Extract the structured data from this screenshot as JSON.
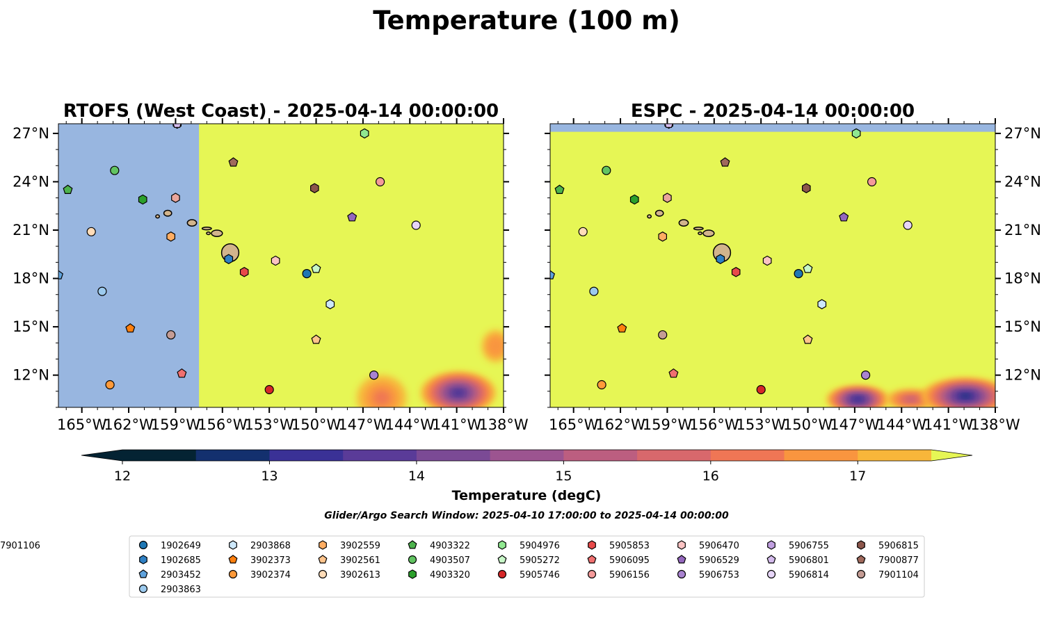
{
  "figure": {
    "title": "Temperature (100 m)",
    "search_window": "Glider/Argo Search Window: 2025-04-10 17:00:00 to 2025-04-14 00:00:00"
  },
  "colors": {
    "land": "#d2b48c",
    "no_data": "#98b6e0",
    "over": "#e6f655",
    "under": "#042333"
  },
  "colorbar": {
    "label": "Temperature (degC)",
    "min": 12,
    "max": 17.5,
    "step": 0.5,
    "ticks": [
      12,
      13,
      14,
      15,
      16,
      17
    ],
    "tick_labels": [
      "12",
      "13",
      "14",
      "15",
      "16",
      "17"
    ],
    "level_colors": [
      "#042333",
      "#13306e",
      "#3a3196",
      "#5a3b98",
      "#7b4a95",
      "#9c5490",
      "#bc5e80",
      "#d8686c",
      "#ef7655",
      "#f9953f",
      "#f8b63a"
    ],
    "extend": "both"
  },
  "map": {
    "lon_range": [
      -166.5,
      -138
    ],
    "lat_range": [
      10,
      27.6
    ],
    "x_ticks": [
      -165,
      -162,
      -159,
      -156,
      -153,
      -150,
      -147,
      -144,
      -141,
      -138
    ],
    "x_tick_labels": [
      "165°W",
      "162°W",
      "159°W",
      "156°W",
      "153°W",
      "150°W",
      "147°W",
      "144°W",
      "141°W",
      "138°W"
    ],
    "y_ticks": [
      12,
      15,
      18,
      21,
      24,
      27
    ],
    "y_tick_labels": [
      "12°N",
      "15°N",
      "18°N",
      "21°N",
      "24°N",
      "27°N"
    ]
  },
  "chart_data": [
    {
      "type": "heatmap",
      "title": "RTOFS (West Coast) - 2025-04-14 00:00:00",
      "field_note_no_data_west_of": -157.5,
      "warm_field_value": "> 17.5",
      "cool_patches": [
        {
          "lon": -145.8,
          "lat": 10.6,
          "rx": 1.6,
          "ry": 1.4,
          "min_value": 16.3
        },
        {
          "lon": -140.9,
          "lat": 10.9,
          "rx": 2.4,
          "ry": 1.3,
          "min_value": 13.3
        },
        {
          "lon": -138.5,
          "lat": 13.8,
          "rx": 0.9,
          "ry": 1.0,
          "min_value": 16.5
        }
      ]
    },
    {
      "type": "heatmap",
      "title": "ESPC - 2025-04-14 00:00:00",
      "field_note_no_data_north_of": 27.1,
      "warm_field_value": "> 17.5",
      "cool_patches": [
        {
          "lon": -146.8,
          "lat": 10.5,
          "rx": 2.0,
          "ry": 0.8,
          "min_value": 13.0
        },
        {
          "lon": -143.4,
          "lat": 10.5,
          "rx": 1.6,
          "ry": 0.6,
          "min_value": 15.3
        },
        {
          "lon": -139.9,
          "lat": 10.7,
          "rx": 2.8,
          "ry": 1.1,
          "min_value": 12.8
        }
      ]
    }
  ],
  "legend": {
    "floats": [
      {
        "id": "1902649",
        "marker": "circle",
        "color": "#1f77b4",
        "lon": -150.6,
        "lat": 18.3
      },
      {
        "id": "1902685",
        "marker": "hexagon",
        "color": "#2f80c4",
        "lon": -155.6,
        "lat": 19.2
      },
      {
        "id": "2903452",
        "marker": "pentagon",
        "color": "#5fa2dc",
        "lon": -166.5,
        "lat": 18.2
      },
      {
        "id": "2903863",
        "marker": "circle",
        "color": "#9ccaee",
        "lon": -163.7,
        "lat": 17.2
      },
      {
        "id": "2903868",
        "marker": "hexagon",
        "color": "#cde8fb",
        "lon": -149.1,
        "lat": 16.4
      },
      {
        "id": "3902373",
        "marker": "pentagon",
        "color": "#ff7f0e",
        "lon": -161.9,
        "lat": 14.9
      },
      {
        "id": "3902374",
        "marker": "circle",
        "color": "#ff9a3a",
        "lon": -163.2,
        "lat": 11.4
      },
      {
        "id": "3902559",
        "marker": "hexagon",
        "color": "#ffad62",
        "lon": -159.3,
        "lat": 20.6
      },
      {
        "id": "3902561",
        "marker": "pentagon",
        "color": "#ffc48c",
        "lon": -150.0,
        "lat": 14.2
      },
      {
        "id": "3902613",
        "marker": "circle",
        "color": "#ffdcb8",
        "lon": -164.4,
        "lat": 20.9
      },
      {
        "id": "4903322",
        "marker": "pentagon",
        "color": "#4db34d",
        "lon": -165.9,
        "lat": 23.5
      },
      {
        "id": "4903507",
        "marker": "circle",
        "color": "#62c462",
        "lon": -162.9,
        "lat": 24.7
      },
      {
        "id": "4903320",
        "marker": "hexagon",
        "color": "#2ca02c",
        "lon": -161.1,
        "lat": 22.9
      },
      {
        "id": "5904976",
        "marker": "hexagon",
        "color": "#90e890",
        "lon": -146.9,
        "lat": 27.0
      },
      {
        "id": "5905272",
        "marker": "pentagon",
        "color": "#c8f7c8",
        "lon": -150.0,
        "lat": 18.6
      },
      {
        "id": "5905746",
        "marker": "circle",
        "color": "#d62728",
        "lon": -153.0,
        "lat": 11.1
      },
      {
        "id": "5905853",
        "marker": "hexagon",
        "color": "#e84a4a",
        "lon": -154.6,
        "lat": 18.4
      },
      {
        "id": "5906095",
        "marker": "pentagon",
        "color": "#f07070",
        "lon": -158.6,
        "lat": 12.1
      },
      {
        "id": "5906156",
        "marker": "circle",
        "color": "#f49a9a",
        "lon": -145.9,
        "lat": 24.0
      },
      {
        "id": "5906470",
        "marker": "hexagon",
        "color": "#fbc3c3",
        "lon": -152.6,
        "lat": 19.1
      },
      {
        "id": "5906529",
        "marker": "pentagon",
        "color": "#9467bd",
        "lon": -147.7,
        "lat": 21.8
      },
      {
        "id": "5906753",
        "marker": "circle",
        "color": "#a983d0",
        "lon": -146.3,
        "lat": 12.0
      },
      {
        "id": "5906755",
        "marker": "hexagon",
        "color": "#c09fe0",
        "lon": -158.9,
        "lat": 27.6
      },
      {
        "id": "5906801",
        "marker": "pentagon",
        "color": "#d4bbec",
        "lon": -158.9,
        "lat": 27.6
      },
      {
        "id": "5906814",
        "marker": "circle",
        "color": "#e6d5f7",
        "lon": -143.6,
        "lat": 21.3
      },
      {
        "id": "5906815",
        "marker": "hexagon",
        "color": "#8c564b",
        "lon": -150.1,
        "lat": 23.6
      },
      {
        "id": "7900877",
        "marker": "pentagon",
        "color": "#a0695c",
        "lon": -155.3,
        "lat": 25.2
      },
      {
        "id": "7901104",
        "marker": "circle",
        "color": "#c49c94",
        "lon": -159.3,
        "lat": 14.5
      },
      {
        "id": "7901106",
        "marker": "hexagon",
        "color": "#eaa59b",
        "lon": -159.0,
        "lat": 23.0
      }
    ]
  }
}
